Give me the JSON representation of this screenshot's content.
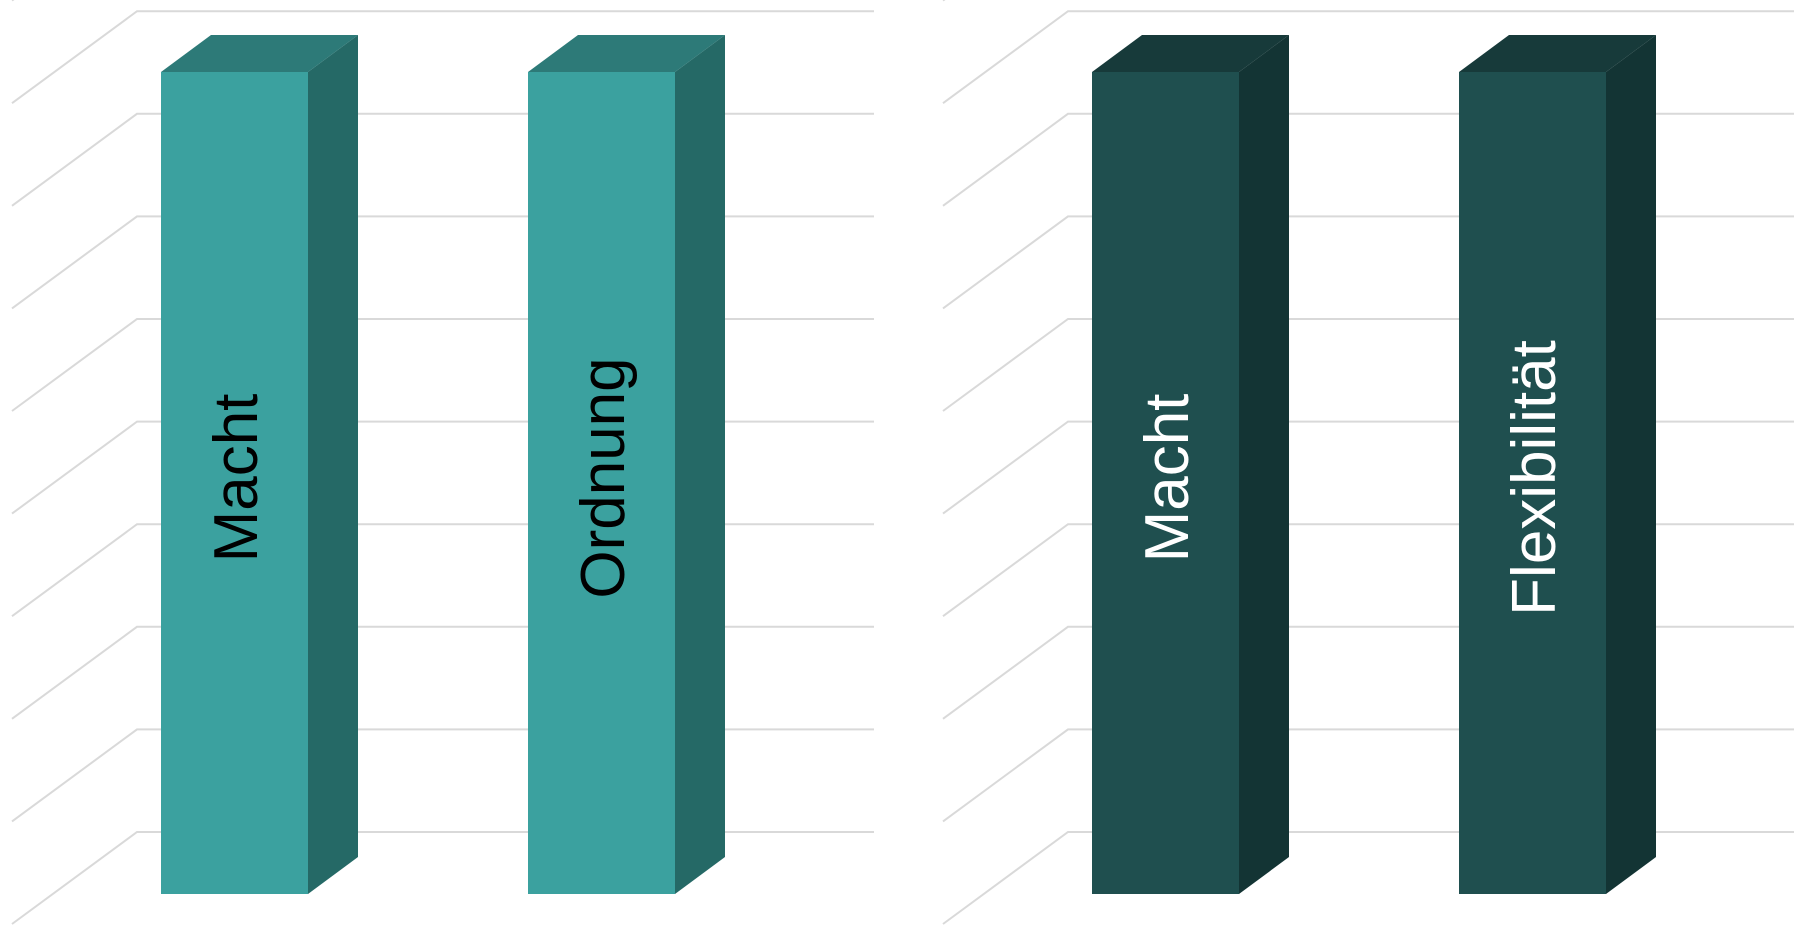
{
  "chart_data": [
    {
      "type": "bar",
      "style": "3d-column",
      "categories": [
        "Macht",
        "Ordnung"
      ],
      "values": [
        1,
        1
      ],
      "ylim": [
        0,
        1
      ],
      "grid": true,
      "legend": "none",
      "color_front": "#3ba19f",
      "color_side": "#256966",
      "color_top": "#2d7a78",
      "label_color": "#000000"
    },
    {
      "type": "bar",
      "style": "3d-column",
      "categories": [
        "Macht",
        "Flexibilität"
      ],
      "values": [
        1,
        1
      ],
      "ylim": [
        0,
        1
      ],
      "grid": true,
      "legend": "none",
      "color_front": "#1f4f4f",
      "color_side": "#133434",
      "color_top": "#173a3a",
      "label_color": "#ffffff"
    }
  ]
}
